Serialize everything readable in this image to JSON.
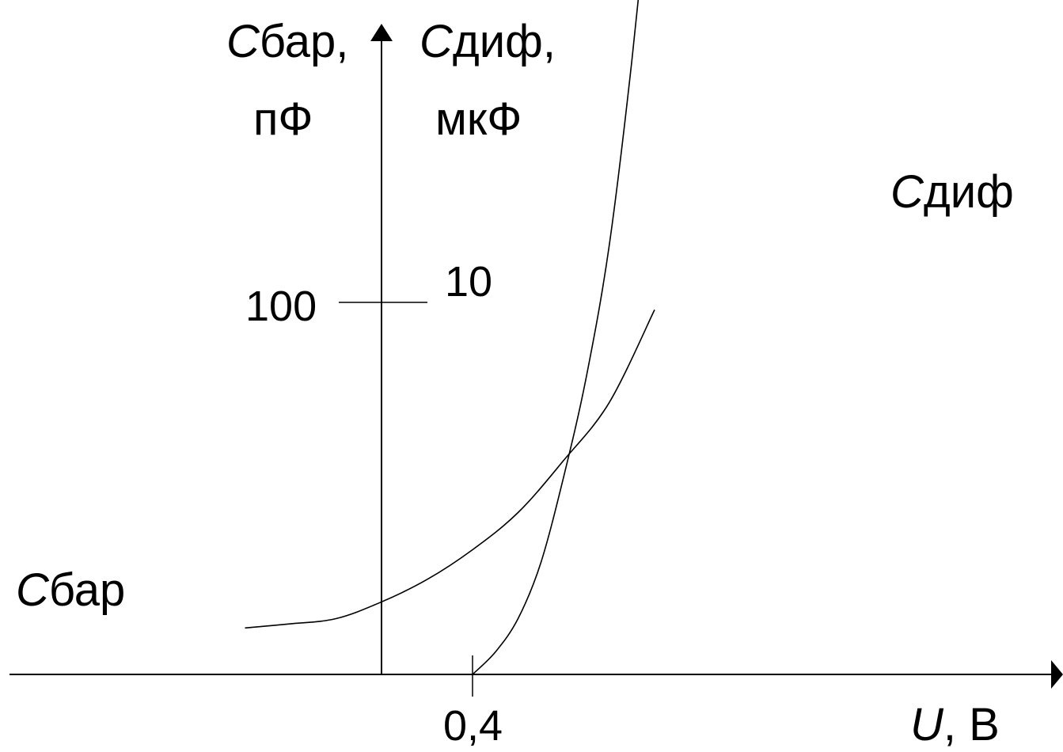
{
  "chart_data": {
    "type": "line",
    "title": "",
    "y_axis_left": {
      "symbol": "C",
      "subscript": "бар",
      "label_suffix": ",",
      "unit": "пФ",
      "ticks": [
        "100"
      ]
    },
    "y_axis_right": {
      "symbol": "C",
      "subscript": "диф",
      "label_suffix": ",",
      "unit": "мкФ",
      "ticks": [
        "10"
      ]
    },
    "x_axis": {
      "symbol": "U",
      "unit_text": ", В",
      "ticks": [
        "0,4"
      ]
    },
    "series": [
      {
        "name_symbol": "C",
        "name_subscript": "бар",
        "axis": "left",
        "x": [
          -0.6,
          -0.4,
          -0.2,
          0.0,
          0.2,
          0.4,
          0.6,
          0.8,
          1.0,
          1.2
        ],
        "y": [
          12.5,
          13.6,
          15.0,
          19.5,
          25.5,
          33.5,
          43.5,
          57.5,
          73.0,
          98.0
        ]
      },
      {
        "name_symbol": "C",
        "name_subscript": "диф",
        "axis": "right",
        "x": [
          0.4,
          0.5,
          0.6,
          0.7,
          0.8,
          0.9,
          1.0,
          1.1,
          1.2
        ],
        "y": [
          0.0,
          0.6,
          1.5,
          3.0,
          5.3,
          8.0,
          11.5,
          16.5,
          22.5
        ]
      }
    ]
  }
}
